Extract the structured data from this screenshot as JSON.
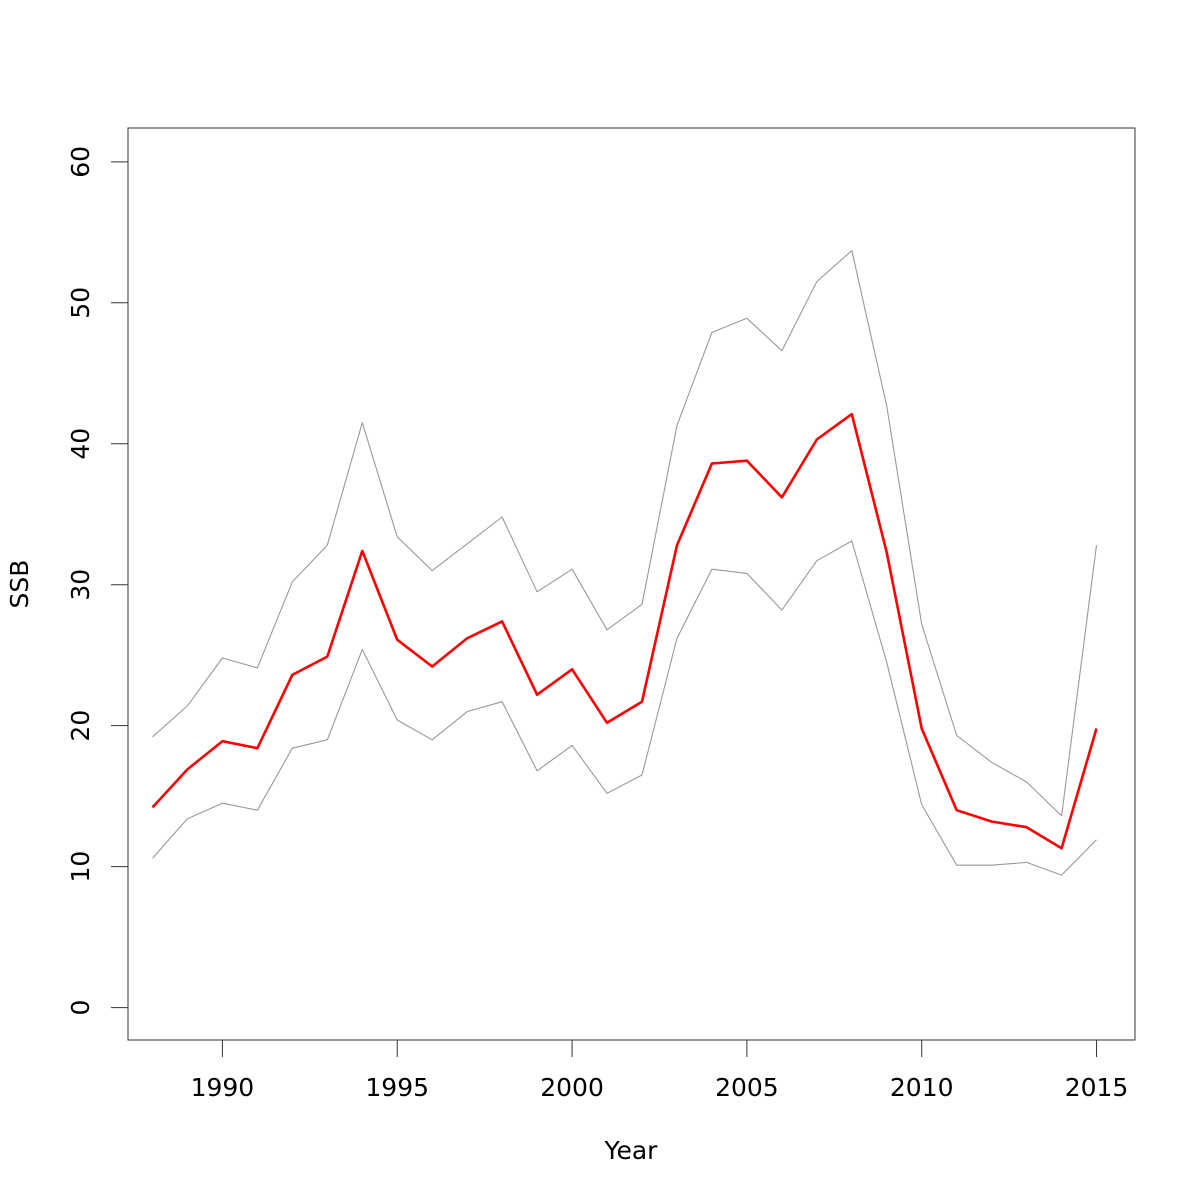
{
  "chart_data": {
    "type": "line",
    "xlabel": "Year",
    "ylabel": "SSB",
    "xlim": [
      1987.3,
      2016.1
    ],
    "ylim": [
      -2.3,
      62.4
    ],
    "x_ticks": [
      1990,
      1995,
      2000,
      2005,
      2010,
      2015
    ],
    "y_ticks": [
      0,
      10,
      20,
      30,
      40,
      50,
      60
    ],
    "grid": false,
    "x": [
      1988,
      1989,
      1990,
      1991,
      1992,
      1993,
      1994,
      1995,
      1996,
      1997,
      1998,
      1999,
      2000,
      2001,
      2002,
      2003,
      2004,
      2005,
      2006,
      2007,
      2008,
      2009,
      2010,
      2011,
      2012,
      2013,
      2014,
      2015
    ],
    "series": [
      {
        "color": "#ff0000",
        "values": [
          14.2,
          16.9,
          18.9,
          18.4,
          23.6,
          24.9,
          32.4,
          26.1,
          24.2,
          26.2,
          27.4,
          22.2,
          24.0,
          20.2,
          21.7,
          32.8,
          38.6,
          38.8,
          36.2,
          40.3,
          42.1,
          32.3,
          19.8,
          14.0,
          13.2,
          12.8,
          11.3,
          19.8
        ]
      },
      {
        "color": "#999999",
        "values": [
          19.2,
          21.4,
          24.8,
          24.1,
          30.2,
          32.8,
          41.5,
          33.4,
          31.0,
          32.9,
          34.8,
          29.5,
          31.1,
          26.8,
          28.6,
          41.3,
          47.9,
          48.9,
          46.6,
          51.5,
          53.7,
          42.7,
          27.2,
          19.3,
          17.4,
          16.0,
          13.6,
          32.8
        ]
      },
      {
        "color": "#999999",
        "values": [
          10.6,
          13.4,
          14.5,
          14.0,
          18.4,
          19.0,
          25.4,
          20.4,
          19.0,
          21.0,
          21.7,
          16.8,
          18.6,
          15.2,
          16.5,
          26.2,
          31.1,
          30.8,
          28.2,
          31.7,
          33.1,
          24.5,
          14.4,
          10.1,
          10.1,
          10.3,
          9.4,
          11.9
        ]
      }
    ]
  }
}
